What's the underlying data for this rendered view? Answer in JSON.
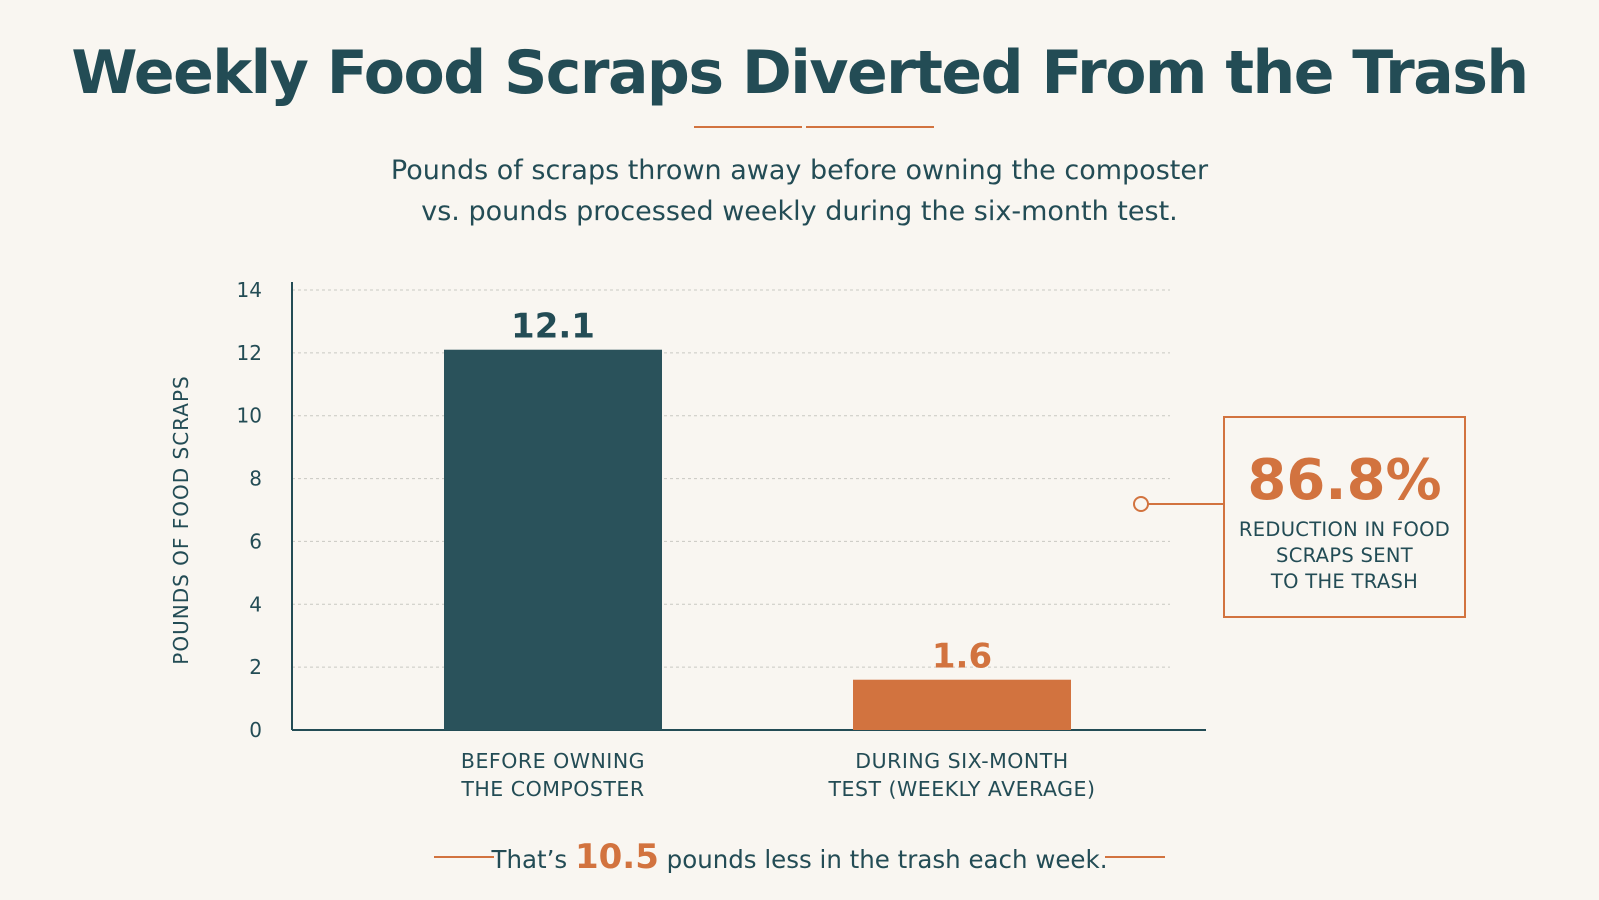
{
  "header": {
    "title": "Weekly Food Scraps Diverted From the Trash",
    "subtitle_line1": "Pounds of scraps thrown away before owning the composter",
    "subtitle_line2": "vs. pounds processed weekly during the six-month test."
  },
  "chart_data": {
    "type": "bar",
    "title": "Weekly Food Scraps Diverted From the Trash",
    "ylabel": "POUNDS OF FOOD SCRAPS",
    "xlabel": "",
    "ylim": [
      0,
      14
    ],
    "yticks": [
      0,
      2,
      4,
      6,
      8,
      10,
      12,
      14
    ],
    "grid": true,
    "categories": [
      [
        "BEFORE OWNING",
        "THE COMPOSTER"
      ],
      [
        "DURING SIX-MONTH",
        "TEST (WEEKLY AVERAGE)"
      ]
    ],
    "values": [
      12.1,
      1.6
    ],
    "value_labels": [
      "12.1",
      "1.6"
    ],
    "colors": [
      "#2a525b",
      "#d2733f"
    ]
  },
  "callout": {
    "value": "86.8%",
    "line1": "REDUCTION IN FOOD",
    "line2": "SCRAPS SENT",
    "line3": "TO THE TRASH"
  },
  "footer": {
    "prefix": "That’s",
    "highlight": "10.5",
    "suffix": "pounds less in the trash each week."
  },
  "colors": {
    "background": "#f9f6f1",
    "primary": "#234c55",
    "accent": "#d2733f",
    "grid": "#c9c9c2"
  }
}
